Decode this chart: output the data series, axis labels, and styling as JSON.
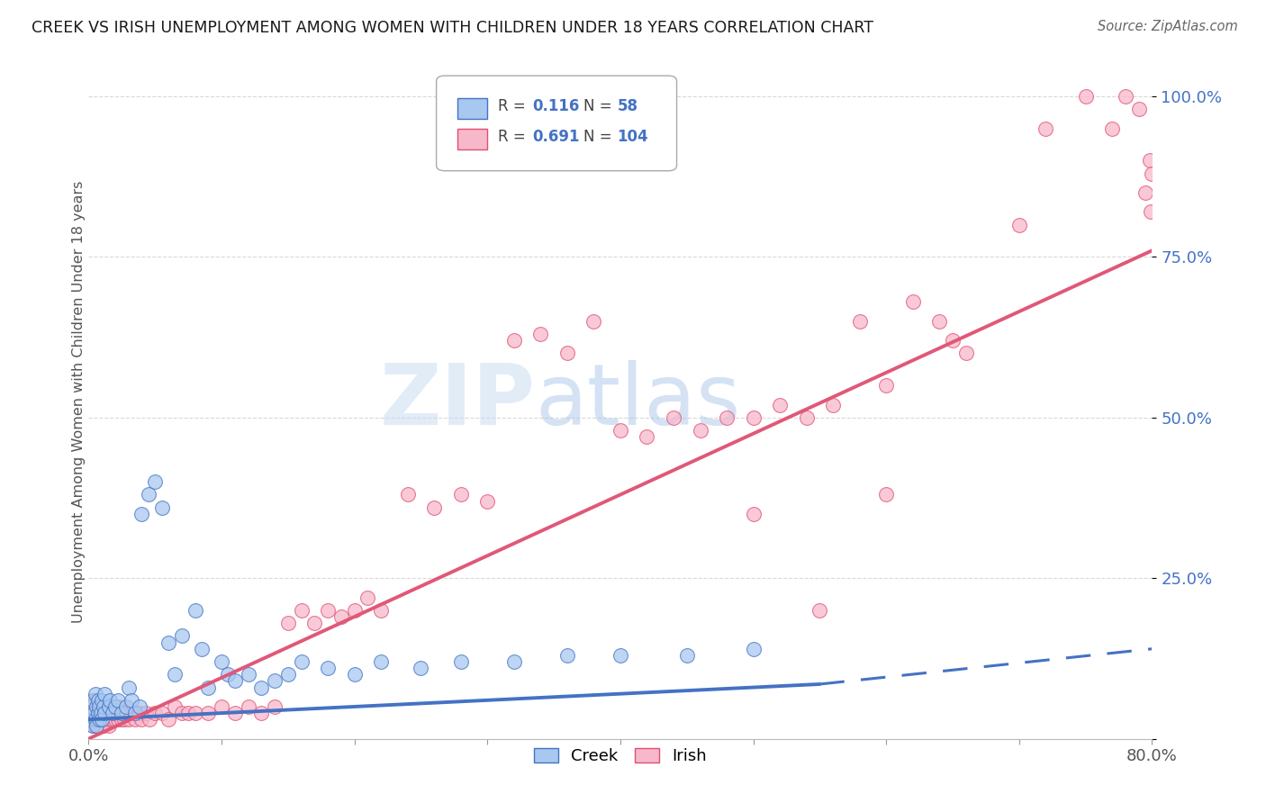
{
  "title": "CREEK VS IRISH UNEMPLOYMENT AMONG WOMEN WITH CHILDREN UNDER 18 YEARS CORRELATION CHART",
  "source": "Source: ZipAtlas.com",
  "ylabel": "Unemployment Among Women with Children Under 18 years",
  "watermark_zip": "ZIP",
  "watermark_atlas": "atlas",
  "creek_color_fill": "#a8c8f0",
  "creek_color_edge": "#4472c4",
  "irish_color_fill": "#f8b8cc",
  "irish_color_edge": "#e05070",
  "creek_line_color": "#4472c4",
  "irish_line_color": "#e05878",
  "background_color": "#ffffff",
  "grid_color": "#d0d0d0",
  "creek_R": 0.116,
  "creek_N": 58,
  "irish_R": 0.691,
  "irish_N": 104,
  "xlim": [
    0.0,
    0.8
  ],
  "ylim": [
    0.0,
    1.05
  ],
  "creek_scatter_x": [
    0.001,
    0.002,
    0.003,
    0.003,
    0.004,
    0.005,
    0.005,
    0.006,
    0.006,
    0.007,
    0.007,
    0.008,
    0.008,
    0.009,
    0.01,
    0.01,
    0.011,
    0.012,
    0.012,
    0.015,
    0.016,
    0.018,
    0.02,
    0.022,
    0.025,
    0.028,
    0.03,
    0.032,
    0.035,
    0.038,
    0.04,
    0.045,
    0.05,
    0.055,
    0.06,
    0.065,
    0.07,
    0.08,
    0.085,
    0.09,
    0.1,
    0.105,
    0.11,
    0.12,
    0.13,
    0.14,
    0.15,
    0.16,
    0.18,
    0.2,
    0.22,
    0.25,
    0.28,
    0.32,
    0.36,
    0.4,
    0.45,
    0.5
  ],
  "creek_scatter_y": [
    0.03,
    0.05,
    0.02,
    0.06,
    0.04,
    0.03,
    0.07,
    0.02,
    0.05,
    0.04,
    0.06,
    0.03,
    0.05,
    0.04,
    0.03,
    0.06,
    0.05,
    0.04,
    0.07,
    0.05,
    0.06,
    0.04,
    0.05,
    0.06,
    0.04,
    0.05,
    0.08,
    0.06,
    0.04,
    0.05,
    0.35,
    0.38,
    0.4,
    0.36,
    0.15,
    0.1,
    0.16,
    0.2,
    0.14,
    0.08,
    0.12,
    0.1,
    0.09,
    0.1,
    0.08,
    0.09,
    0.1,
    0.12,
    0.11,
    0.1,
    0.12,
    0.11,
    0.12,
    0.12,
    0.13,
    0.13,
    0.13,
    0.14
  ],
  "irish_scatter_x": [
    0.001,
    0.002,
    0.002,
    0.003,
    0.003,
    0.004,
    0.004,
    0.005,
    0.005,
    0.006,
    0.006,
    0.007,
    0.007,
    0.008,
    0.008,
    0.009,
    0.009,
    0.01,
    0.01,
    0.011,
    0.011,
    0.012,
    0.012,
    0.013,
    0.014,
    0.015,
    0.015,
    0.016,
    0.017,
    0.018,
    0.019,
    0.02,
    0.021,
    0.022,
    0.023,
    0.024,
    0.025,
    0.026,
    0.027,
    0.028,
    0.03,
    0.032,
    0.035,
    0.038,
    0.04,
    0.043,
    0.046,
    0.05,
    0.055,
    0.06,
    0.065,
    0.07,
    0.075,
    0.08,
    0.09,
    0.1,
    0.11,
    0.12,
    0.13,
    0.14,
    0.15,
    0.16,
    0.17,
    0.18,
    0.19,
    0.2,
    0.21,
    0.22,
    0.24,
    0.26,
    0.28,
    0.3,
    0.32,
    0.34,
    0.36,
    0.38,
    0.4,
    0.42,
    0.44,
    0.46,
    0.48,
    0.5,
    0.52,
    0.54,
    0.56,
    0.58,
    0.6,
    0.62,
    0.64,
    0.66,
    0.7,
    0.72,
    0.75,
    0.77,
    0.78,
    0.79,
    0.795,
    0.798,
    0.799,
    0.8,
    0.5,
    0.55,
    0.6,
    0.65
  ],
  "irish_scatter_y": [
    0.04,
    0.03,
    0.05,
    0.02,
    0.06,
    0.03,
    0.05,
    0.02,
    0.06,
    0.03,
    0.04,
    0.02,
    0.05,
    0.03,
    0.06,
    0.02,
    0.04,
    0.03,
    0.05,
    0.02,
    0.04,
    0.03,
    0.05,
    0.04,
    0.03,
    0.02,
    0.05,
    0.03,
    0.04,
    0.03,
    0.04,
    0.03,
    0.04,
    0.03,
    0.05,
    0.04,
    0.03,
    0.04,
    0.03,
    0.04,
    0.03,
    0.04,
    0.03,
    0.04,
    0.03,
    0.04,
    0.03,
    0.04,
    0.04,
    0.03,
    0.05,
    0.04,
    0.04,
    0.04,
    0.04,
    0.05,
    0.04,
    0.05,
    0.04,
    0.05,
    0.18,
    0.2,
    0.18,
    0.2,
    0.19,
    0.2,
    0.22,
    0.2,
    0.38,
    0.36,
    0.38,
    0.37,
    0.62,
    0.63,
    0.6,
    0.65,
    0.48,
    0.47,
    0.5,
    0.48,
    0.5,
    0.5,
    0.52,
    0.5,
    0.52,
    0.65,
    0.55,
    0.68,
    0.65,
    0.6,
    0.8,
    0.95,
    1.0,
    0.95,
    1.0,
    0.98,
    0.85,
    0.9,
    0.82,
    0.88,
    0.35,
    0.2,
    0.38,
    0.62
  ],
  "creek_line_x0": 0.0,
  "creek_line_x1": 0.55,
  "creek_line_xdash0": 0.55,
  "creek_line_xdash1": 0.8,
  "creek_line_y0": 0.03,
  "creek_line_y1": 0.085,
  "creek_line_ydash0": 0.085,
  "creek_line_ydash1": 0.14,
  "irish_line_x0": 0.0,
  "irish_line_x1": 0.8,
  "irish_line_y0": -0.02,
  "irish_line_y1": 0.76
}
